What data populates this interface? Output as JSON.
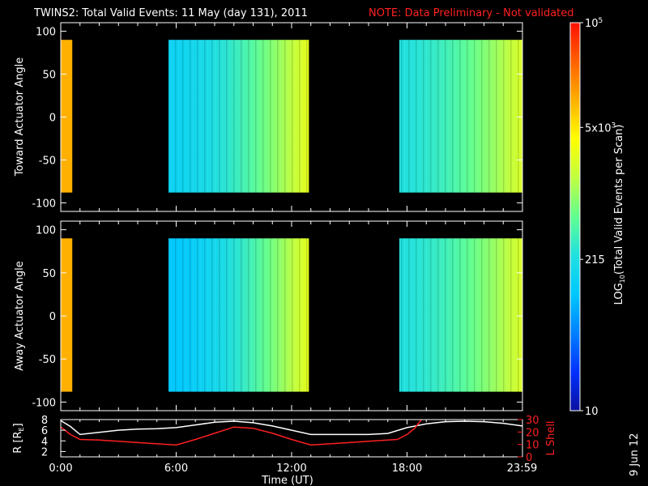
{
  "header": {
    "title": "TWINS2: Total Valid Events: 11 May (day 131), 2011",
    "note": "NOTE: Data Preliminary - Not validated"
  },
  "footer": {
    "date_stamp": "9 Jun 12"
  },
  "chart_data": [
    {
      "type": "heatmap",
      "ylabel": "Toward Actuator Angle",
      "xlim": [
        0,
        24
      ],
      "ylim": [
        -110,
        110
      ],
      "yticks": [
        "100",
        "50",
        "0",
        "-50",
        "-100"
      ],
      "data_ylim": [
        -88,
        90
      ],
      "segments": [
        {
          "start_ut": 0.0,
          "end_ut": 0.6,
          "level": 0.8
        },
        {
          "start_ut": 5.6,
          "end_ut": 12.9,
          "profile": "increasing",
          "level_start": 0.34,
          "level_end": 0.66
        },
        {
          "start_ut": 17.6,
          "end_ut": 23.99,
          "profile": "increasing",
          "level_start": 0.4,
          "level_end": 0.64
        }
      ]
    },
    {
      "type": "heatmap",
      "ylabel": "Away Actuator Angle",
      "xlim": [
        0,
        24
      ],
      "ylim": [
        -110,
        110
      ],
      "yticks": [
        "100",
        "50",
        "0",
        "-50",
        "-100"
      ],
      "data_ylim": [
        -88,
        90
      ],
      "segments": [
        {
          "start_ut": 0.0,
          "end_ut": 0.6,
          "level": 0.8
        },
        {
          "start_ut": 5.6,
          "end_ut": 12.9,
          "profile": "increasing",
          "level_start": 0.3,
          "level_end": 0.66
        },
        {
          "start_ut": 17.6,
          "end_ut": 23.99,
          "profile": "increasing",
          "level_start": 0.4,
          "level_end": 0.64
        }
      ]
    },
    {
      "type": "line",
      "ylabel": "R [R",
      "ylabel_sub": "E",
      "ylabel_end": "]",
      "y2label": "L Shell",
      "xlabel": "Time (UT)",
      "xticks": [
        "0:00",
        "6:00",
        "12:00",
        "18:00",
        "23:59"
      ],
      "xtick_values": [
        0,
        6,
        12,
        18,
        23.98
      ],
      "yticks": [
        "8",
        "6",
        "4",
        "2"
      ],
      "ylim": [
        1,
        8
      ],
      "y2ticks": [
        "30",
        "20",
        "10",
        "0"
      ],
      "y2lim": [
        0,
        30
      ],
      "series": [
        {
          "color": "#ffffff",
          "x": [
            0,
            0.5,
            1,
            2,
            3,
            4,
            5,
            6,
            7,
            8,
            9,
            10,
            11,
            12,
            13,
            14,
            15,
            16,
            17,
            18,
            19,
            20,
            21,
            22,
            23,
            24
          ],
          "values": [
            7.8,
            6.7,
            5.2,
            5.6,
            6.0,
            6.2,
            6.3,
            6.5,
            7.0,
            7.5,
            7.7,
            7.4,
            6.8,
            6.0,
            5.2,
            5.2,
            5.2,
            5.2,
            5.4,
            6.5,
            7.2,
            7.6,
            7.7,
            7.6,
            7.3,
            6.8
          ]
        },
        {
          "color": "#ff2020",
          "axis": "right",
          "x": [
            0,
            0.5,
            1,
            2,
            3,
            4,
            5,
            6,
            7,
            8,
            9,
            10,
            11,
            12,
            13,
            14,
            15,
            16,
            17,
            17.5,
            18,
            18.4,
            18.8
          ],
          "values": [
            24,
            18,
            14,
            13.5,
            12.5,
            11.5,
            10.5,
            9.5,
            14,
            19,
            24,
            23,
            19,
            14,
            9.5,
            10.5,
            11.5,
            12.5,
            13.5,
            14,
            18,
            23,
            31
          ]
        }
      ]
    }
  ],
  "colorbar": {
    "label": "LOG",
    "label_sub": "10",
    "label_rest": "(Total Valid Events per Scan)",
    "tick_labels": [
      {
        "base": "10",
        "exp": "5",
        "level": 1.0
      },
      {
        "base": "5x10",
        "exp": "3",
        "level": 0.73
      },
      {
        "base": "215",
        "exp": "",
        "level": 0.39
      },
      {
        "base": "10",
        "exp": "",
        "level": 0.0
      }
    ]
  },
  "colors": {
    "background": "#000000",
    "text": "#ffffff",
    "note": "#ff2020",
    "colormap": [
      "#0a10a0",
      "#0030ff",
      "#0080ff",
      "#00c8ff",
      "#20e0e0",
      "#60ff90",
      "#c0ff40",
      "#ffff00",
      "#ffb000",
      "#ff6000",
      "#ff1000"
    ]
  }
}
